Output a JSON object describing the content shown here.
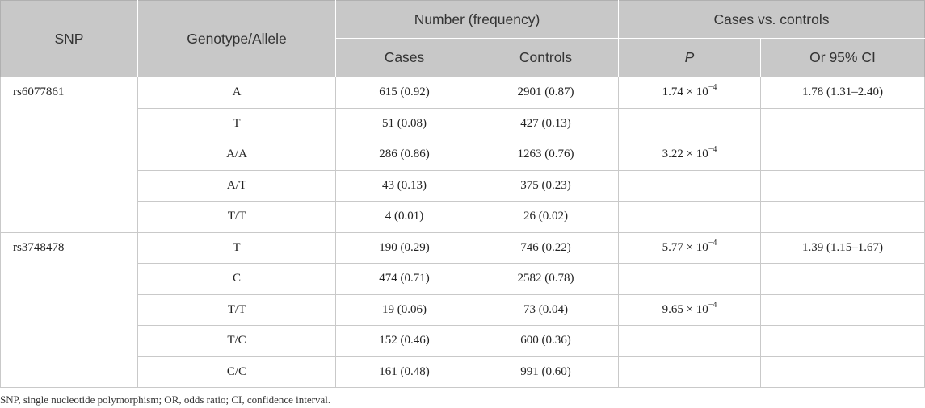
{
  "header": {
    "snp": "SNP",
    "genotype_allele": "Genotype/Allele",
    "number_frequency": "Number (frequency)",
    "cases_vs_controls": "Cases vs. controls",
    "cases": "Cases",
    "controls": "Controls",
    "p": "P",
    "or_ci": "Or 95% CI"
  },
  "groups": [
    {
      "snp": "rs6077861",
      "rows": [
        {
          "genotype": "A",
          "cases": "615 (0.92)",
          "controls": "2901 (0.87)",
          "p_mantissa": "1.74 × 10",
          "p_exp": "−4",
          "or": "1.78 (1.31–2.40)"
        },
        {
          "genotype": "T",
          "cases": "51 (0.08)",
          "controls": "427 (0.13)",
          "p_mantissa": "",
          "p_exp": "",
          "or": ""
        },
        {
          "genotype": "A/A",
          "cases": "286 (0.86)",
          "controls": "1263 (0.76)",
          "p_mantissa": "3.22 × 10",
          "p_exp": "−4",
          "or": ""
        },
        {
          "genotype": "A/T",
          "cases": "43 (0.13)",
          "controls": "375 (0.23)",
          "p_mantissa": "",
          "p_exp": "",
          "or": ""
        },
        {
          "genotype": "T/T",
          "cases": "4 (0.01)",
          "controls": "26 (0.02)",
          "p_mantissa": "",
          "p_exp": "",
          "or": ""
        }
      ]
    },
    {
      "snp": "rs3748478",
      "rows": [
        {
          "genotype": "T",
          "cases": "190 (0.29)",
          "controls": "746 (0.22)",
          "p_mantissa": "5.77 × 10",
          "p_exp": "−4",
          "or": "1.39 (1.15–1.67)"
        },
        {
          "genotype": "C",
          "cases": "474 (0.71)",
          "controls": "2582 (0.78)",
          "p_mantissa": "",
          "p_exp": "",
          "or": ""
        },
        {
          "genotype": "T/T",
          "cases": "19 (0.06)",
          "controls": "73 (0.04)",
          "p_mantissa": "9.65 × 10",
          "p_exp": "−4",
          "or": ""
        },
        {
          "genotype": "T/C",
          "cases": "152 (0.46)",
          "controls": "600 (0.36)",
          "p_mantissa": "",
          "p_exp": "",
          "or": ""
        },
        {
          "genotype": "C/C",
          "cases": "161 (0.48)",
          "controls": "991 (0.60)",
          "p_mantissa": "",
          "p_exp": "",
          "or": ""
        }
      ]
    }
  ],
  "footnote": "SNP, single nucleotide polymorphism; OR, odds ratio; CI, confidence interval."
}
